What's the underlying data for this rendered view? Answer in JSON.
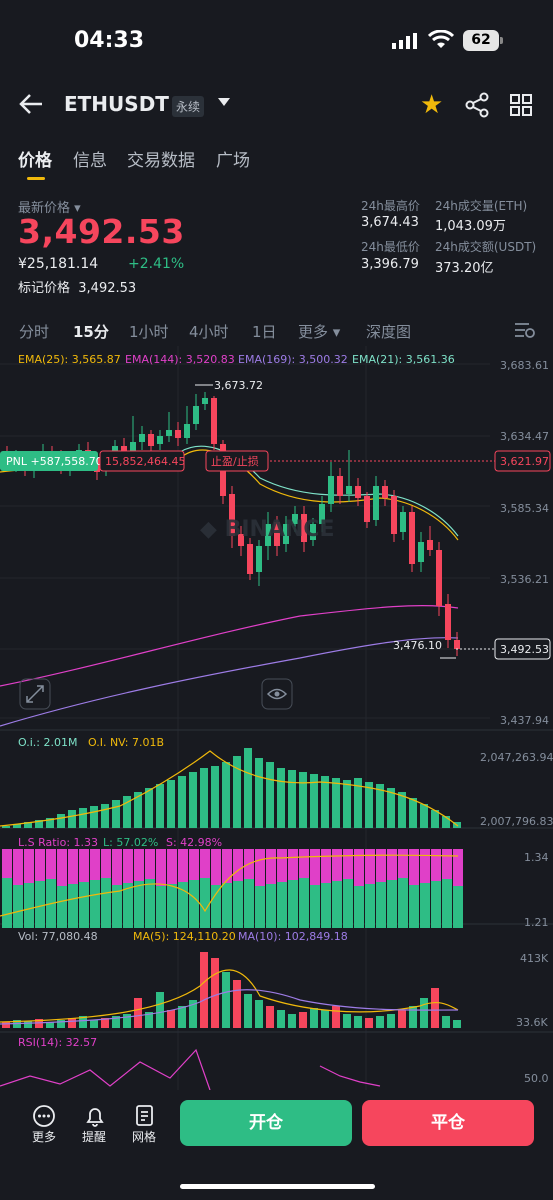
{
  "status": {
    "time": "04:33",
    "battery": "62"
  },
  "header": {
    "symbol": "ETHUSDT",
    "contract_type": "永续"
  },
  "tabs": [
    {
      "label": "价格"
    },
    {
      "label": "信息"
    },
    {
      "label": "交易数据"
    },
    {
      "label": "广场"
    }
  ],
  "price": {
    "last_label": "最新价格",
    "last": "3,492.53",
    "cny": "¥25,181.14",
    "change": "+2.41%",
    "mark_label": "标记价格",
    "mark": "3,492.53"
  },
  "stats": {
    "high_label": "24h最高价",
    "high": "3,674.43",
    "low_label": "24h最低价",
    "low": "3,396.79",
    "vol_eth_label": "24h成交量(ETH)",
    "vol_eth": "1,043.09万",
    "vol_usdt_label": "24h成交额(USDT)",
    "vol_usdt": "373.20亿"
  },
  "timeframes": [
    {
      "label": "分时"
    },
    {
      "label": "15分"
    },
    {
      "label": "1小时"
    },
    {
      "label": "4小时"
    },
    {
      "label": "1日"
    },
    {
      "label": "更多"
    },
    {
      "label": "深度图"
    }
  ],
  "indicators": {
    "ema": [
      {
        "label": "EMA(25): 3,565.87",
        "color": "#f0b90b"
      },
      {
        "label": "EMA(144): 3,520.83",
        "color": "#e040c8"
      },
      {
        "label": "EMA(169): 3,500.32",
        "color": "#9d7ce6"
      },
      {
        "label": "EMA(21): 3,561.36",
        "color": "#7ee2c8"
      }
    ],
    "oi": {
      "oi": "O.i.: 2.01M",
      "oi_nv": "O.I. NV: 7.01B",
      "axis_top": "2,047,263.94",
      "axis_bottom": "2,007,796.83"
    },
    "ls": {
      "ratio": "L.S Ratio: 1.33",
      "long": "L: 57.02%",
      "short": "S: 42.98%",
      "axis_top": "1.34",
      "axis_bottom": "1.21"
    },
    "vol": {
      "vol": "Vol: 77,080.48",
      "ma5": "MA(5): 124,110.20",
      "ma10": "MA(10): 102,849.18",
      "axis_top": "413K",
      "axis_bottom": "33.6K"
    },
    "rsi": {
      "label": "RSI(14): 32.57",
      "axis": "50.0"
    }
  },
  "chart_data": {
    "type": "candlestick",
    "y_axis_ticks": [
      "3,683.61",
      "3,634.47",
      "3,585.34",
      "3,536.21",
      "3,437.94"
    ],
    "ylim": [
      3437.94,
      3683.61
    ],
    "high_annotation": "3,673.72",
    "low_annotation": "3,476.10",
    "current_price_tag": "3,492.53",
    "pnl_label": "PNL +587,558.70",
    "position_size": "15,852,464.45",
    "tp_sl_label": "止盈/止损",
    "tp_sl_price": "3,621.97"
  },
  "bottom": {
    "more": "更多",
    "alert": "提醒",
    "grid": "网格",
    "open": "开仓",
    "close": "平仓"
  }
}
